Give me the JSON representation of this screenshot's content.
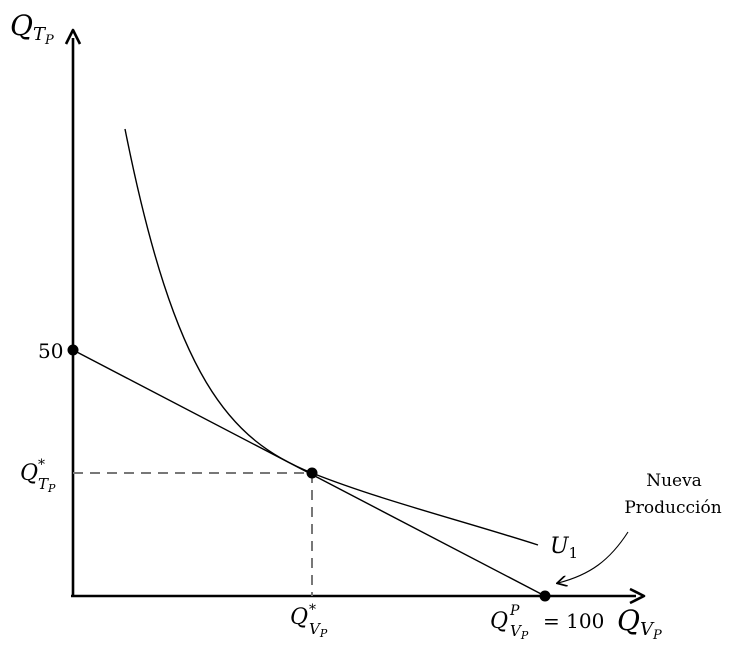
{
  "diagram": {
    "y_axis": {
      "symbol": "Q",
      "subscript": "T",
      "subsub": "P"
    },
    "x_axis": {
      "symbol": "Q",
      "subscript": "V",
      "subsub": "P"
    },
    "y_intercept_label": "50",
    "y_star_label": {
      "symbol": "Q",
      "sup": "*",
      "subscript": "T",
      "subsub": "P"
    },
    "x_star_label": {
      "symbol": "Q",
      "sup": "*",
      "subscript": "V",
      "subsub": "P"
    },
    "x_intercept_label": {
      "symbol": "Q",
      "sup": "P",
      "subscript": "V",
      "subsub": "P",
      "suffix": "= 100"
    },
    "curve_label": {
      "symbol": "U",
      "subscript": "1"
    },
    "annotation": {
      "line1": "Nueva",
      "line2": "Producción"
    }
  }
}
